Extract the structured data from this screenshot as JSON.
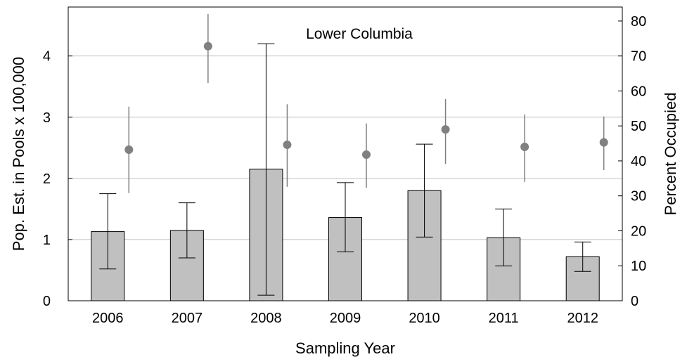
{
  "chart_data": {
    "type": "bar",
    "title": "Lower Columbia",
    "xlabel": "Sampling Year",
    "ylabel_left": "Pop. Est. in Pools x 100,000",
    "ylabel_right": "Percent Occupied",
    "categories": [
      "2006",
      "2007",
      "2008",
      "2009",
      "2010",
      "2011",
      "2012"
    ],
    "ylim_left": [
      0,
      4.8
    ],
    "ylim_right": [
      0,
      84
    ],
    "yticks_left": [
      "0",
      "1",
      "2",
      "3",
      "4"
    ],
    "yticks_right": [
      "0",
      "10",
      "20",
      "30",
      "40",
      "50",
      "60",
      "70",
      "80"
    ],
    "grid": true,
    "series": [
      {
        "kind": "bar",
        "axis": "left",
        "values": [
          1.13,
          1.15,
          2.15,
          1.36,
          1.8,
          1.03,
          0.72
        ],
        "err_low": [
          0.52,
          0.7,
          0.09,
          0.8,
          1.04,
          0.57,
          0.48
        ],
        "err_high": [
          1.75,
          1.6,
          4.2,
          1.93,
          2.56,
          1.5,
          0.96
        ]
      },
      {
        "kind": "point",
        "axis": "right",
        "values": [
          43.2,
          72.8,
          44.6,
          41.8,
          49.0,
          44.0,
          45.3
        ],
        "err_low": [
          30.8,
          62.3,
          32.6,
          32.3,
          39.1,
          34.0,
          37.4
        ],
        "err_high": [
          55.5,
          82.0,
          56.2,
          50.7,
          57.7,
          53.3,
          52.7
        ]
      }
    ],
    "colors": {
      "bar": "#c0c0c0",
      "point": "#808080",
      "grid": "#c0c0c0"
    }
  }
}
